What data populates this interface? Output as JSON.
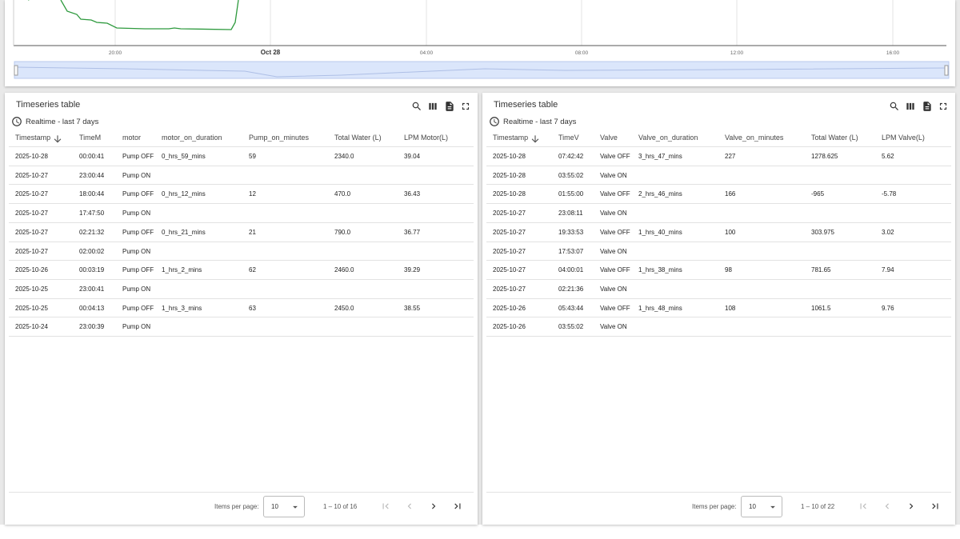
{
  "top_chart": {
    "x_labels": [
      "20:00",
      "Oct 28",
      "04:00",
      "08:00",
      "12:00",
      "16:00"
    ]
  },
  "tables": [
    {
      "title": "Timeseries table",
      "subtitle": "Realtime - last 7 days",
      "columns": [
        "Timestamp",
        "TimeM",
        "motor",
        "motor_on_duration",
        "Pump_on_minutes",
        "Total Water (L)",
        "LPM Motor(L)"
      ],
      "rows": [
        [
          "2025-10-28",
          "00:00:41",
          "Pump OFF",
          "0_hrs_59_mins",
          "59",
          "2340.0",
          "39.04"
        ],
        [
          "2025-10-27",
          "23:00:44",
          "Pump ON"
        ],
        [
          "2025-10-27",
          "18:00:44",
          "Pump OFF",
          "0_hrs_12_mins",
          "12",
          "470.0",
          "36.43"
        ],
        [
          "2025-10-27",
          "17:47:50",
          "Pump ON"
        ],
        [
          "2025-10-27",
          "02:21:32",
          "Pump OFF",
          "0_hrs_21_mins",
          "21",
          "790.0",
          "36.77"
        ],
        [
          "2025-10-27",
          "02:00:02",
          "Pump ON"
        ],
        [
          "2025-10-26",
          "00:03:19",
          "Pump OFF",
          "1_hrs_2_mins",
          "62",
          "2460.0",
          "39.29"
        ],
        [
          "2025-10-25",
          "23:00:41",
          "Pump ON"
        ],
        [
          "2025-10-25",
          "00:04:13",
          "Pump OFF",
          "1_hrs_3_mins",
          "63",
          "2450.0",
          "38.55"
        ],
        [
          "2025-10-24",
          "23:00:39",
          "Pump ON"
        ]
      ],
      "pagination": {
        "label": "Items per page:",
        "page_size": "10",
        "range": "1 – 10 of 16"
      }
    },
    {
      "title": "Timeseries table",
      "subtitle": "Realtime - last 7 days",
      "columns": [
        "Timestamp",
        "TimeV",
        "Valve",
        "Valve_on_duration",
        "Valve_on_minutes",
        "Total Water (L)",
        "LPM Valve(L)"
      ],
      "rows": [
        [
          "2025-10-28",
          "07:42:42",
          "Valve OFF",
          "3_hrs_47_mins",
          "227",
          "1278.625",
          "5.62"
        ],
        [
          "2025-10-28",
          "03:55:02",
          "Valve ON"
        ],
        [
          "2025-10-28",
          "01:55:00",
          "Valve OFF",
          "2_hrs_46_mins",
          "166",
          "-965",
          "-5.78"
        ],
        [
          "2025-10-27",
          "23:08:11",
          "Valve ON"
        ],
        [
          "2025-10-27",
          "19:33:53",
          "Valve OFF",
          "1_hrs_40_mins",
          "100",
          "303.975",
          "3.02"
        ],
        [
          "2025-10-27",
          "17:53:07",
          "Valve ON"
        ],
        [
          "2025-10-27",
          "04:00:01",
          "Valve OFF",
          "1_hrs_38_mins",
          "98",
          "781.65",
          "7.94"
        ],
        [
          "2025-10-27",
          "02:21:36",
          "Valve ON"
        ],
        [
          "2025-10-26",
          "05:43:44",
          "Valve OFF",
          "1_hrs_48_mins",
          "108",
          "1061.5",
          "9.76"
        ],
        [
          "2025-10-26",
          "03:55:02",
          "Valve ON"
        ]
      ],
      "pagination": {
        "label": "Items per page:",
        "page_size": "10",
        "range": "1 – 10 of 22"
      }
    }
  ]
}
